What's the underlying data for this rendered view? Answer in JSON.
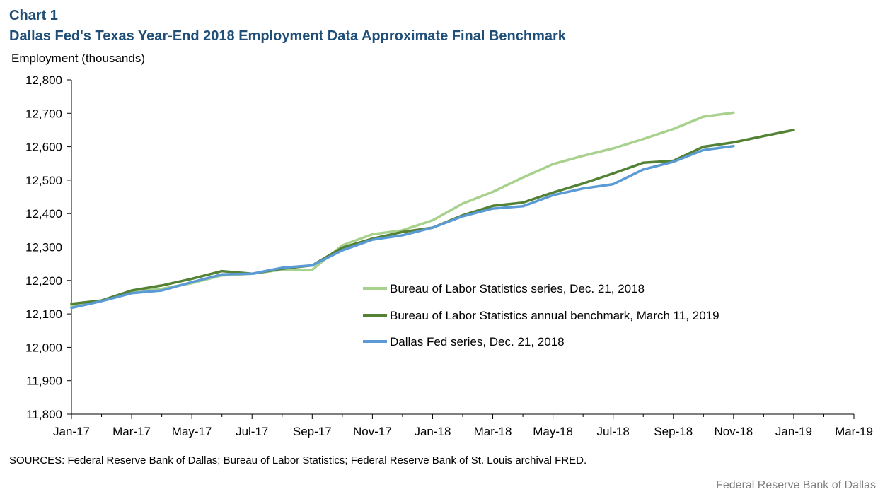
{
  "header": {
    "chart_label": "Chart 1",
    "title": "Dallas Fed's Texas Year-End 2018 Employment Data Approximate Final Benchmark",
    "y_unit": "Employment  (thousands)"
  },
  "footer": {
    "sources": "SOURCES: Federal Reserve Bank of Dallas; Bureau of Labor Statistics; Federal Reserve Bank of St. Louis archival FRED.",
    "credit": "Federal Reserve Bank of Dallas"
  },
  "chart_data": {
    "type": "line",
    "title": "Dallas Fed's Texas Year-End 2018 Employment Data Approximate Final Benchmark",
    "ylabel": "Employment  (thousands)",
    "xlabel": "",
    "ylim": [
      11800,
      12800
    ],
    "y_ticks": [
      11800,
      11900,
      12000,
      12100,
      12200,
      12300,
      12400,
      12500,
      12600,
      12700,
      12800
    ],
    "y_tick_labels": [
      "11,800",
      "11,900",
      "12,000",
      "12,100",
      "12,200",
      "12,300",
      "12,400",
      "12,500",
      "12,600",
      "12,700",
      "12,800"
    ],
    "x_months": [
      "Jan-17",
      "Feb-17",
      "Mar-17",
      "Apr-17",
      "May-17",
      "Jun-17",
      "Jul-17",
      "Aug-17",
      "Sep-17",
      "Oct-17",
      "Nov-17",
      "Dec-17",
      "Jan-18",
      "Feb-18",
      "Mar-18",
      "Apr-18",
      "May-18",
      "Jun-18",
      "Jul-18",
      "Aug-18",
      "Sep-18",
      "Oct-18",
      "Nov-18",
      "Dec-18",
      "Jan-19",
      "Feb-19",
      "Mar-19"
    ],
    "x_tick_labels": [
      "Jan-17",
      "Mar-17",
      "May-17",
      "Jul-17",
      "Sep-17",
      "Nov-17",
      "Jan-18",
      "Mar-18",
      "May-18",
      "Jul-18",
      "Sep-18",
      "Nov-18",
      "Jan-19",
      "Mar-19"
    ],
    "grid": false,
    "legend_position": "center-right",
    "series": [
      {
        "name": "Bureau of Labor Statistics series, Dec. 21,  2018",
        "color": "#a9d18e",
        "values": [
          12125,
          12140,
          12168,
          12175,
          12192,
          12215,
          12220,
          12232,
          12232,
          12305,
          12338,
          12350,
          12380,
          12430,
          12465,
          12508,
          12548,
          12573,
          12595,
          12623,
          12653,
          12690,
          12702
        ]
      },
      {
        "name": "Bureau of Labor Statistics annual benchmark, March 11, 2019",
        "color": "#548235",
        "values": [
          12130,
          12140,
          12170,
          12185,
          12205,
          12228,
          12220,
          12235,
          12245,
          12298,
          12325,
          12345,
          12358,
          12395,
          12423,
          12433,
          12463,
          12490,
          12520,
          12552,
          12558,
          12600,
          12613,
          12632,
          12650
        ]
      },
      {
        "name": "Dallas Fed series, Dec. 21, 2018",
        "color": "#5b9bd5",
        "values": [
          12118,
          12138,
          12162,
          12170,
          12195,
          12218,
          12220,
          12238,
          12245,
          12290,
          12322,
          12335,
          12358,
          12392,
          12415,
          12422,
          12455,
          12475,
          12488,
          12532,
          12555,
          12590,
          12602
        ]
      }
    ]
  }
}
